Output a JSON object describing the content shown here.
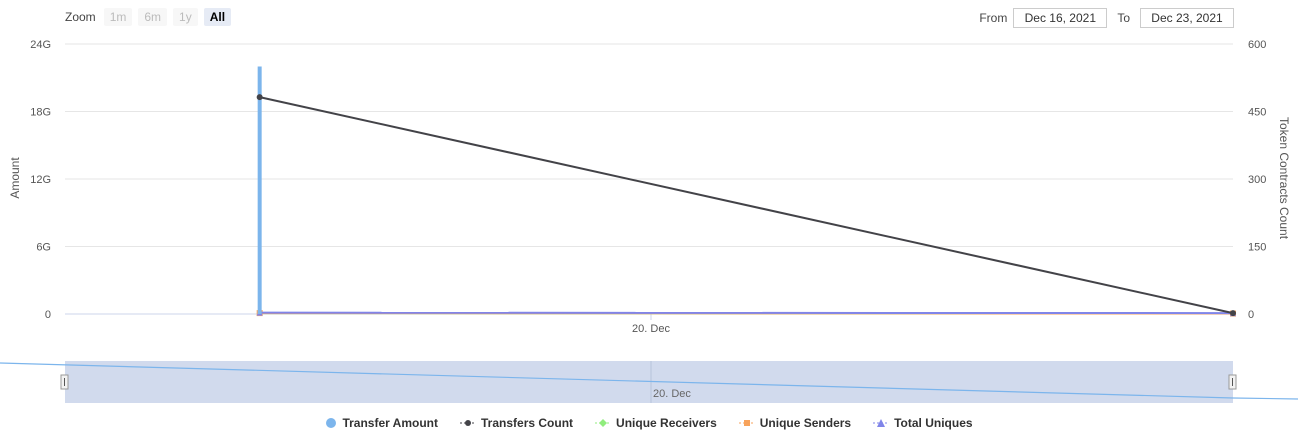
{
  "zoom": {
    "label": "Zoom",
    "buttons": [
      {
        "label": "1m",
        "active": false
      },
      {
        "label": "6m",
        "active": false
      },
      {
        "label": "1y",
        "active": false
      },
      {
        "label": "All",
        "active": true
      }
    ]
  },
  "range": {
    "from_label": "From",
    "from_value": "Dec 16, 2021",
    "to_label": "To",
    "to_value": "Dec 23, 2021"
  },
  "chart_data": {
    "type": "line",
    "title": "",
    "ylabel": "Amount",
    "y2label": "Token Contracts Count",
    "ylim": [
      0,
      24000000000
    ],
    "y2lim": [
      0,
      600
    ],
    "yticks": [
      "0",
      "6G",
      "12G",
      "18G",
      "24G"
    ],
    "y2ticks": [
      "0",
      "150",
      "300",
      "450",
      "600"
    ],
    "xlim": [
      "2021-12-17",
      "2021-12-23"
    ],
    "x_tick_labels": [
      "20. Dec"
    ],
    "navigator_label": "20. Dec",
    "grid": true,
    "legend_position": "bottom",
    "series": [
      {
        "name": "Transfer Amount",
        "axis": "left",
        "kind": "column",
        "color": "#7cb5ec",
        "points": [
          {
            "x": "2021-12-18",
            "y": 22000000000
          },
          {
            "x": "2021-12-23",
            "y": 0
          }
        ]
      },
      {
        "name": "Transfers Count",
        "axis": "right",
        "kind": "line",
        "color": "#434348",
        "points": [
          {
            "x": "2021-12-18",
            "y": 482
          },
          {
            "x": "2021-12-23",
            "y": 2
          }
        ]
      },
      {
        "name": "Unique Receivers",
        "axis": "right",
        "kind": "line",
        "color": "#90ed7d",
        "points": [
          {
            "x": "2021-12-18",
            "y": 2
          },
          {
            "x": "2021-12-23",
            "y": 1
          }
        ]
      },
      {
        "name": "Unique Senders",
        "axis": "right",
        "kind": "line",
        "color": "#f7a35c",
        "points": [
          {
            "x": "2021-12-18",
            "y": 2
          },
          {
            "x": "2021-12-23",
            "y": 1
          }
        ]
      },
      {
        "name": "Total Uniques",
        "axis": "right",
        "kind": "line",
        "color": "#8085e9",
        "points": [
          {
            "x": "2021-12-18",
            "y": 3
          },
          {
            "x": "2021-12-23",
            "y": 2
          }
        ]
      }
    ]
  }
}
